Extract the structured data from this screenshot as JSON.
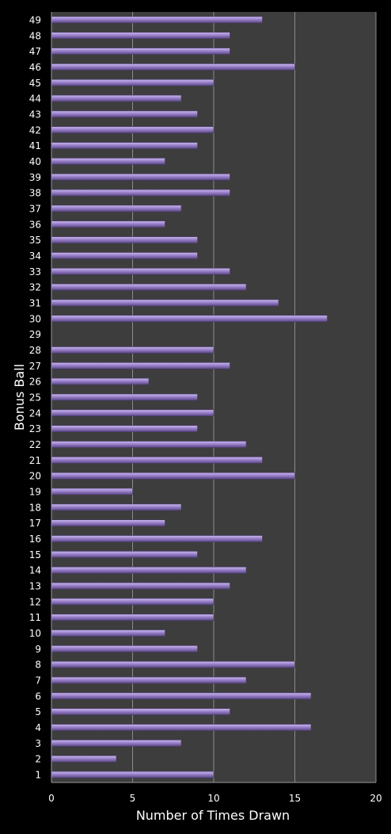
{
  "chart_data": {
    "type": "bar",
    "orientation": "horizontal",
    "title": "",
    "xlabel": "Number of Times Drawn",
    "ylabel": "Bonus Ball",
    "xlim": [
      0,
      20
    ],
    "xticks": [
      0,
      5,
      10,
      15,
      20
    ],
    "grid": true,
    "legend": "none",
    "categories": [
      "1",
      "2",
      "3",
      "4",
      "5",
      "6",
      "7",
      "8",
      "9",
      "10",
      "11",
      "12",
      "13",
      "14",
      "15",
      "16",
      "17",
      "18",
      "19",
      "20",
      "21",
      "22",
      "23",
      "24",
      "25",
      "26",
      "27",
      "28",
      "29",
      "30",
      "31",
      "32",
      "33",
      "34",
      "35",
      "36",
      "37",
      "38",
      "39",
      "40",
      "41",
      "42",
      "43",
      "44",
      "45",
      "46",
      "47",
      "48",
      "49"
    ],
    "values": [
      10,
      4,
      8,
      16,
      11,
      16,
      12,
      15,
      9,
      7,
      10,
      10,
      11,
      12,
      9,
      13,
      7,
      8,
      5,
      15,
      13,
      12,
      9,
      10,
      9,
      6,
      11,
      10,
      0,
      17,
      14,
      12,
      11,
      9,
      9,
      7,
      8,
      11,
      11,
      7,
      9,
      10,
      9,
      8,
      10,
      15,
      11,
      11,
      13
    ],
    "colors": {
      "background": "#000000",
      "plot_area": "#3d3d3d",
      "gridline": "#8c8c8c",
      "bar": "#9b82cc",
      "bar_highlight": "#c9b8ee",
      "bar_shadow": "#5a4784",
      "text": "#ffffff"
    }
  }
}
